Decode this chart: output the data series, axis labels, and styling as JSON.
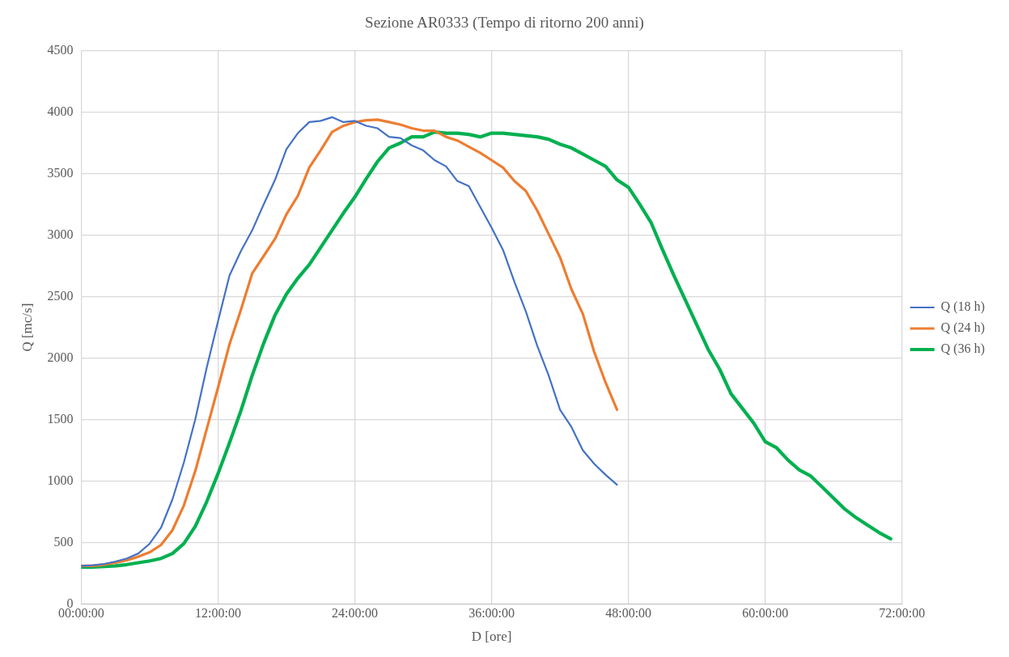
{
  "chart_data": {
    "type": "line",
    "title": "Sezione AR0333 (Tempo di ritorno 200 anni)",
    "xlabel": "D [ore]",
    "ylabel": "Q [mc/s]",
    "xlim": [
      0,
      72
    ],
    "xticks": [
      {
        "value": 0,
        "label": "00:00:00"
      },
      {
        "value": 12,
        "label": "12:00:00"
      },
      {
        "value": 24,
        "label": "24:00:00"
      },
      {
        "value": 36,
        "label": "36:00:00"
      },
      {
        "value": 48,
        "label": "48:00:00"
      },
      {
        "value": 60,
        "label": "60:00:00"
      },
      {
        "value": 72,
        "label": "72:00:00"
      }
    ],
    "ylim": [
      0,
      4500
    ],
    "yticks": [
      0,
      500,
      1000,
      1500,
      2000,
      2500,
      3000,
      3500,
      4000,
      4500
    ],
    "grid": true,
    "legend": "right",
    "marker": "none",
    "line_style": "solid",
    "series": [
      {
        "name": "Q (18 h)",
        "color": "#4472c4",
        "x": [
          0,
          1,
          2,
          3,
          4,
          5,
          6,
          7,
          8,
          9,
          10,
          11,
          12,
          13,
          14,
          15,
          16,
          17,
          18,
          19,
          20,
          21,
          22,
          23,
          24,
          25,
          26,
          27,
          28,
          29,
          30,
          31,
          32,
          33,
          34,
          35,
          36,
          37,
          38,
          39,
          40,
          41,
          42,
          43,
          44,
          45,
          46,
          47
        ],
        "values": [
          310,
          315,
          325,
          345,
          370,
          410,
          490,
          620,
          850,
          1150,
          1500,
          1920,
          2300,
          2670,
          2870,
          3040,
          3250,
          3450,
          3700,
          3830,
          3920,
          3930,
          3960,
          3920,
          3930,
          3890,
          3870,
          3800,
          3790,
          3730,
          3690,
          3610,
          3560,
          3440,
          3400,
          3230,
          3060,
          2880,
          2620,
          2380,
          2100,
          1860,
          1580,
          1440,
          1250,
          1140,
          1050,
          970
        ]
      },
      {
        "name": "Q (24 h)",
        "color": "#ed7d31",
        "x": [
          0,
          1,
          2,
          3,
          4,
          5,
          6,
          7,
          8,
          9,
          10,
          11,
          12,
          13,
          14,
          15,
          16,
          17,
          18,
          19,
          20,
          21,
          22,
          23,
          24,
          25,
          26,
          27,
          28,
          29,
          30,
          31,
          32,
          33,
          34,
          35,
          36,
          37,
          38,
          39,
          40,
          41,
          42,
          43,
          44,
          45,
          46,
          47
        ],
        "values": [
          310,
          310,
          320,
          335,
          355,
          385,
          420,
          480,
          600,
          800,
          1080,
          1420,
          1760,
          2110,
          2390,
          2690,
          2830,
          2970,
          3170,
          3320,
          3550,
          3690,
          3840,
          3890,
          3920,
          3935,
          3940,
          3920,
          3900,
          3870,
          3850,
          3850,
          3800,
          3770,
          3720,
          3670,
          3610,
          3550,
          3440,
          3360,
          3200,
          3010,
          2820,
          2560,
          2360,
          2050,
          1800,
          1580
        ]
      },
      {
        "name": "Q (36 h)",
        "color": "#00b050",
        "x": [
          0,
          1,
          2,
          3,
          4,
          5,
          6,
          7,
          8,
          9,
          10,
          11,
          12,
          13,
          14,
          15,
          16,
          17,
          18,
          19,
          20,
          21,
          22,
          23,
          24,
          25,
          26,
          27,
          28,
          29,
          30,
          31,
          32,
          33,
          34,
          35,
          36,
          37,
          38,
          39,
          40,
          41,
          42,
          43,
          44,
          45,
          46,
          47,
          48,
          49,
          50,
          51,
          52,
          53,
          54,
          55,
          56,
          57,
          58,
          59,
          60,
          61,
          62,
          63,
          64,
          65,
          66,
          67,
          68,
          69,
          70,
          71
        ],
        "values": [
          300,
          300,
          305,
          310,
          320,
          335,
          350,
          370,
          410,
          490,
          630,
          830,
          1060,
          1310,
          1570,
          1860,
          2120,
          2350,
          2520,
          2650,
          2760,
          2900,
          3040,
          3180,
          3310,
          3460,
          3600,
          3710,
          3750,
          3800,
          3800,
          3840,
          3830,
          3830,
          3820,
          3800,
          3830,
          3830,
          3820,
          3810,
          3800,
          3780,
          3740,
          3710,
          3660,
          3610,
          3560,
          3450,
          3390,
          3250,
          3100,
          2880,
          2670,
          2470,
          2270,
          2070,
          1910,
          1710,
          1590,
          1470,
          1320,
          1270,
          1170,
          1090,
          1040,
          950,
          860,
          770,
          700,
          640,
          580,
          530
        ]
      }
    ]
  }
}
